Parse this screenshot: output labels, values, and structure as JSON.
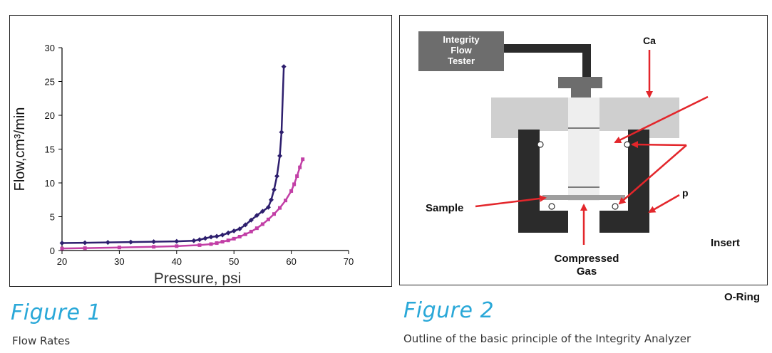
{
  "figure1": {
    "title": "Figure 1",
    "caption": "Flow Rates"
  },
  "figure2": {
    "title": "Figure 2",
    "caption": "Outline of the basic principle of the Integrity Analyzer",
    "labels": {
      "tester_line1": "Integrity",
      "tester_line2": "Flow",
      "tester_line3": "Tester",
      "ca": "Ca",
      "p": "p",
      "sample": "Sample",
      "compressed_line1": "Compressed",
      "compressed_line2": "Gas",
      "insert": "Insert",
      "oring": "O-Ring"
    }
  },
  "chart_data": {
    "type": "line",
    "xlabel": "Pressure, psi",
    "ylabel": "Flow,cm³/min",
    "xlim": [
      20,
      70
    ],
    "ylim": [
      0,
      30
    ],
    "xticks": [
      "20",
      "30",
      "40",
      "50",
      "60",
      "70"
    ],
    "yticks": [
      "0",
      "5",
      "10",
      "15",
      "20",
      "25",
      "30"
    ],
    "grid": false,
    "series": [
      {
        "color": "#2e1f6e",
        "marker": "diamond",
        "x": [
          20,
          24,
          28,
          32,
          36,
          40,
          43,
          44,
          45,
          46,
          47,
          48,
          49,
          50,
          51,
          52,
          53,
          54,
          55,
          56,
          56.5,
          57,
          57.5,
          58,
          58.3,
          58.7
        ],
        "y": [
          1.1,
          1.15,
          1.2,
          1.25,
          1.3,
          1.35,
          1.45,
          1.6,
          1.8,
          2.0,
          2.1,
          2.3,
          2.6,
          2.9,
          3.2,
          3.8,
          4.5,
          5.2,
          5.8,
          6.4,
          7.5,
          9.0,
          11.0,
          14.0,
          17.5,
          27.2
        ]
      },
      {
        "color": "#c23fa6",
        "marker": "square",
        "x": [
          20,
          24,
          30,
          36,
          40,
          44,
          46,
          47,
          48,
          49,
          50,
          51,
          52,
          53,
          54,
          55,
          56,
          57,
          58,
          59,
          60,
          60.5,
          61,
          61.5,
          62
        ],
        "y": [
          0.3,
          0.35,
          0.45,
          0.55,
          0.65,
          0.8,
          0.95,
          1.1,
          1.3,
          1.5,
          1.75,
          2.05,
          2.4,
          2.8,
          3.3,
          3.9,
          4.6,
          5.4,
          6.3,
          7.4,
          8.8,
          9.8,
          11.0,
          12.3,
          13.5
        ]
      }
    ]
  }
}
